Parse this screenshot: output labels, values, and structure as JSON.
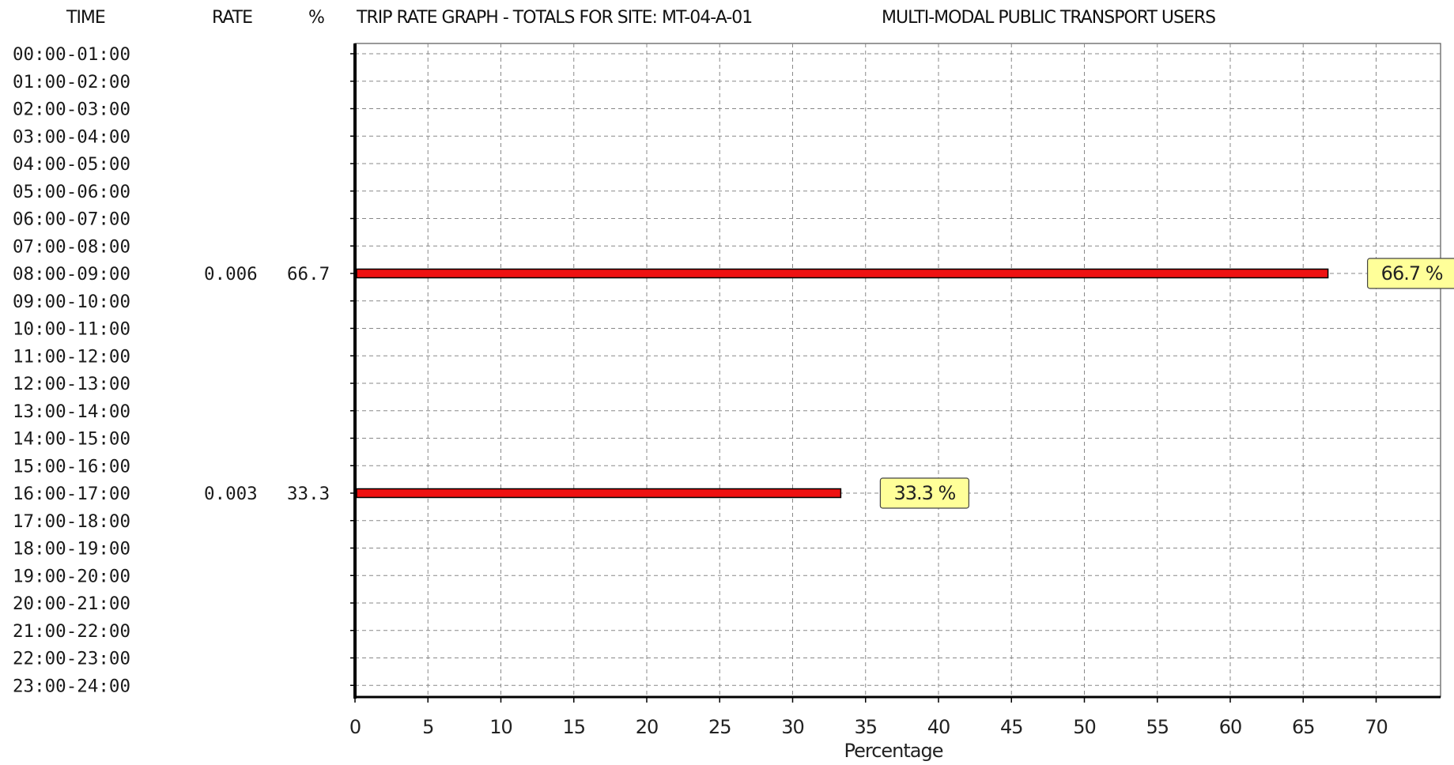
{
  "header": {
    "time_col": "TIME",
    "rate_col": "RATE",
    "pct_col": "%",
    "title": "TRIP RATE GRAPH - TOTALS FOR SITE: MT-04-A-01",
    "subtitle": "MULTI-MODAL  PUBLIC TRANSPORT USERS"
  },
  "colors": {
    "bar": "#ee1111",
    "bar_border": "#000000",
    "label_bg": "#ffff99",
    "grid": "#888888"
  },
  "chart_data": {
    "type": "bar",
    "orientation": "horizontal",
    "title": "TRIP RATE GRAPH - TOTALS FOR SITE: MT-04-A-01",
    "subtitle": "MULTI-MODAL  PUBLIC TRANSPORT USERS",
    "xlabel": "Percentage",
    "ylabel": "",
    "xlim": [
      0,
      74
    ],
    "xticks": [
      0,
      5,
      10,
      15,
      20,
      25,
      30,
      35,
      40,
      45,
      50,
      55,
      60,
      65,
      70
    ],
    "grid": true,
    "categories": [
      "00:00-01:00",
      "01:00-02:00",
      "02:00-03:00",
      "03:00-04:00",
      "04:00-05:00",
      "05:00-06:00",
      "06:00-07:00",
      "07:00-08:00",
      "08:00-09:00",
      "09:00-10:00",
      "10:00-11:00",
      "11:00-12:00",
      "12:00-13:00",
      "13:00-14:00",
      "14:00-15:00",
      "15:00-16:00",
      "16:00-17:00",
      "17:00-18:00",
      "18:00-19:00",
      "19:00-20:00",
      "20:00-21:00",
      "21:00-22:00",
      "22:00-23:00",
      "23:00-24:00"
    ],
    "values": [
      0,
      0,
      0,
      0,
      0,
      0,
      0,
      0,
      66.7,
      0,
      0,
      0,
      0,
      0,
      0,
      0,
      33.3,
      0,
      0,
      0,
      0,
      0,
      0,
      0
    ],
    "rates": [
      "",
      "",
      "",
      "",
      "",
      "",
      "",
      "",
      "0.006",
      "",
      "",
      "",
      "",
      "",
      "",
      "",
      "0.003",
      "",
      "",
      "",
      "",
      "",
      "",
      ""
    ],
    "percents": [
      "",
      "",
      "",
      "",
      "",
      "",
      "",
      "",
      "66.7",
      "",
      "",
      "",
      "",
      "",
      "",
      "",
      "33.3",
      "",
      "",
      "",
      "",
      "",
      "",
      ""
    ],
    "data_labels": [
      "",
      "",
      "",
      "",
      "",
      "",
      "",
      "",
      "66.7 %",
      "",
      "",
      "",
      "",
      "",
      "",
      "",
      "33.3 %",
      "",
      "",
      "",
      "",
      "",
      "",
      ""
    ]
  }
}
